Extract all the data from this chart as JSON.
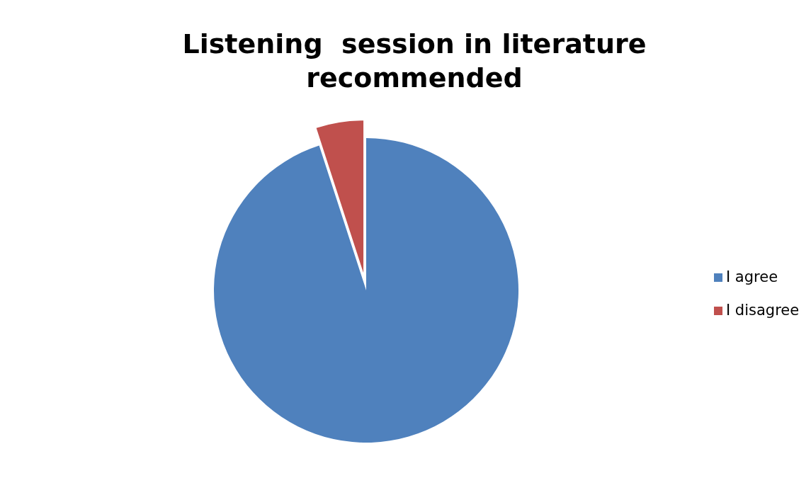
{
  "chart_data": {
    "type": "pie",
    "title": "Listening  session in literature recommended",
    "categories": [
      "I agree",
      "I disagree"
    ],
    "values": [
      95,
      5
    ],
    "colors": [
      "#4f81bd",
      "#c0504d"
    ],
    "legend": "right"
  }
}
